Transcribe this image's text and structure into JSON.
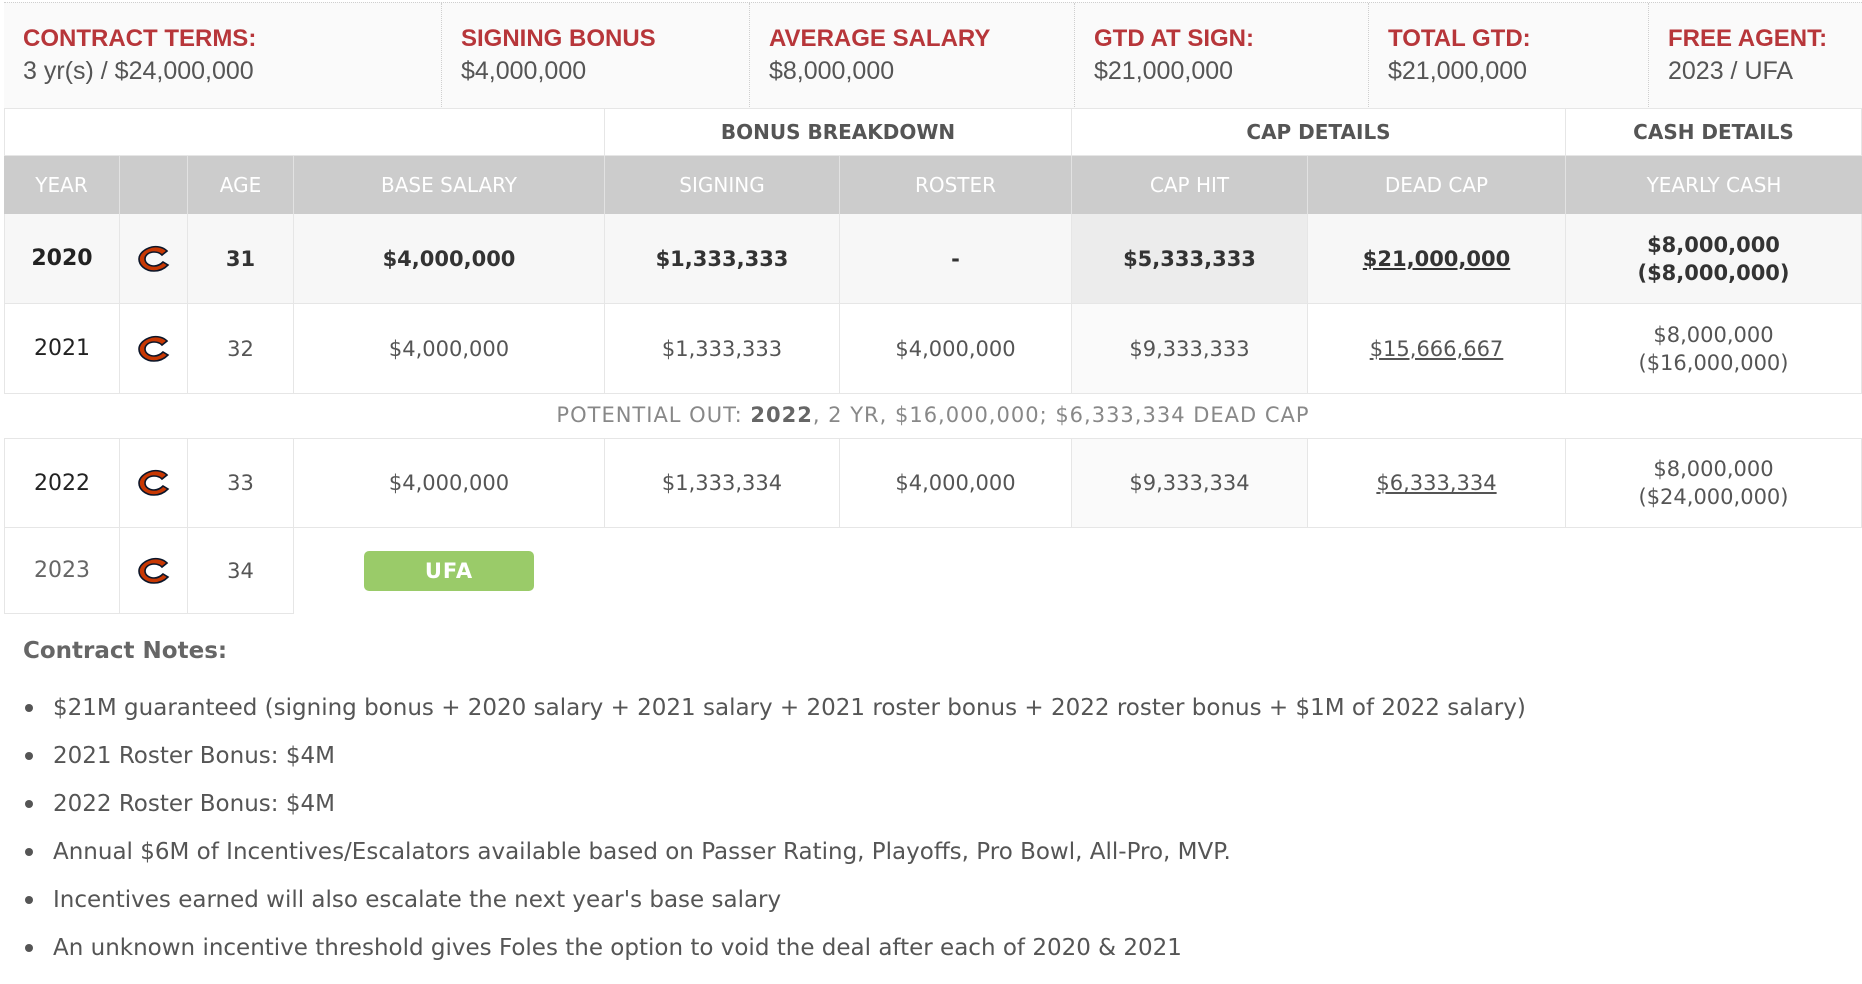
{
  "summary": [
    {
      "label": "CONTRACT TERMS:",
      "value": "3 yr(s) / $24,000,000"
    },
    {
      "label": "SIGNING BONUS",
      "value": "$4,000,000"
    },
    {
      "label": "AVERAGE SALARY",
      "value": "$8,000,000"
    },
    {
      "label": "GTD AT SIGN:",
      "value": "$21,000,000"
    },
    {
      "label": "TOTAL GTD:",
      "value": "$21,000,000"
    },
    {
      "label": "FREE AGENT:",
      "value": "2023 / UFA"
    }
  ],
  "groups": {
    "bonus": "BONUS BREAKDOWN",
    "cap": "CAP DETAILS",
    "cash": "CASH DETAILS"
  },
  "headers": {
    "year": "YEAR",
    "age": "AGE",
    "base": "BASE SALARY",
    "signing": "SIGNING",
    "roster": "ROSTER",
    "caphit": "CAP HIT",
    "deadcap": "DEAD CAP",
    "cash": "YEARLY CASH"
  },
  "team_logo_icon": "chicago-bears-c-logo",
  "colors": {
    "accent": "#b7363a",
    "logo_orange": "#c83803",
    "logo_navy": "#0b162a",
    "ufa": "#9acb69"
  },
  "rows": [
    {
      "year": "2020",
      "age": "31",
      "base": "$4,000,000",
      "signing": "$1,333,333",
      "roster": "-",
      "caphit": "$5,333,333",
      "deadcap": "$21,000,000",
      "cash": "$8,000,000",
      "cash_cum": "($8,000,000)"
    },
    {
      "year": "2021",
      "age": "32",
      "base": "$4,000,000",
      "signing": "$1,333,333",
      "roster": "$4,000,000",
      "caphit": "$9,333,333",
      "deadcap": "$15,666,667",
      "cash": "$8,000,000",
      "cash_cum": "($16,000,000)"
    },
    {
      "year": "2022",
      "age": "33",
      "base": "$4,000,000",
      "signing": "$1,333,334",
      "roster": "$4,000,000",
      "caphit": "$9,333,334",
      "deadcap": "$6,333,334",
      "cash": "$8,000,000",
      "cash_cum": "($24,000,000)"
    },
    {
      "year": "2023",
      "age": "34",
      "status": "UFA"
    }
  ],
  "potential_out": {
    "prefix": "POTENTIAL OUT: ",
    "year": "2022",
    "suffix": ", 2 YR, $16,000,000; $6,333,334 DEAD CAP"
  },
  "notes": {
    "title": "Contract Notes:",
    "items": [
      "$21M guaranteed (signing bonus + 2020 salary + 2021 salary + 2021 roster bonus + 2022 roster bonus + $1M of 2022 salary)",
      "2021 Roster Bonus: $4M",
      "2022 Roster Bonus: $4M",
      "Annual $6M of Incentives/Escalators available based on Passer Rating, Playoffs, Pro Bowl, All-Pro, MVP.",
      "Incentives earned will also escalate the next year's base salary",
      "An unknown incentive threshold gives Foles the option to void the deal after each of 2020 & 2021"
    ]
  }
}
